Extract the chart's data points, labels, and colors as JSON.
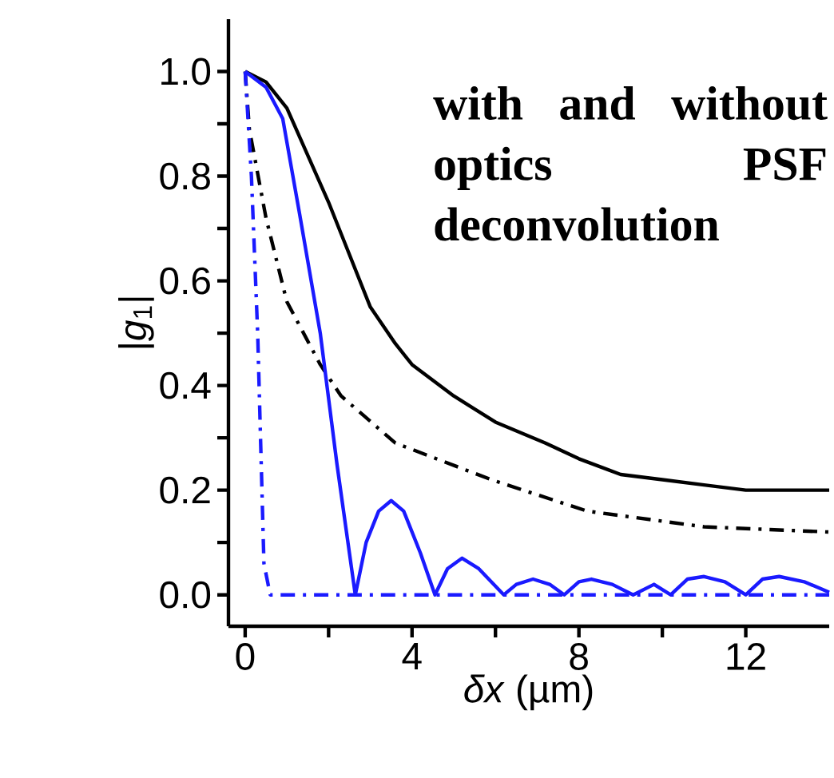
{
  "chart_data": {
    "type": "line",
    "xlabel": "*δx* (µm)",
    "ylabel": "|*g*$_{1}$|",
    "annotations": [
      "with and without optics PSF deconvolution"
    ],
    "xlim": [
      -0.4,
      14
    ],
    "ylim": [
      -0.06,
      1.1
    ],
    "xticks": [
      0,
      {
        "value": 2,
        "label": null
      },
      4,
      {
        "value": 6,
        "label": null
      },
      8,
      {
        "value": 10,
        "label": null
      },
      12
    ],
    "yticks": [
      {
        "value": 0,
        "label": "0.0"
      },
      {
        "value": 0.1,
        "label": null
      },
      {
        "value": 0.2,
        "label": "0.2"
      },
      {
        "value": 0.3,
        "label": null
      },
      {
        "value": 0.4,
        "label": "0.4"
      },
      {
        "value": 0.5,
        "label": null
      },
      {
        "value": 0.6,
        "label": "0.6"
      },
      {
        "value": 0.7,
        "label": null
      },
      {
        "value": 0.8,
        "label": "0.8"
      },
      {
        "value": 0.9,
        "label": null
      },
      {
        "value": 1.0,
        "label": "1.0"
      }
    ],
    "grid": false,
    "marker": "none",
    "series": [
      {
        "color": "#000000",
        "line_style": "solid",
        "x": [
          0,
          0.5,
          1,
          1.5,
          2,
          2.45,
          3,
          3.6,
          4,
          5,
          6,
          7.2,
          8,
          9,
          10,
          11,
          12,
          13,
          14
        ],
        "values": [
          1.0,
          0.98,
          0.93,
          0.84,
          0.75,
          0.66,
          0.55,
          0.48,
          0.44,
          0.38,
          0.33,
          0.29,
          0.26,
          0.23,
          0.22,
          0.21,
          0.2,
          0.2,
          0.2
        ]
      },
      {
        "color": "#000000",
        "line_style": "dashdot",
        "x": [
          0,
          0.1,
          0.5,
          1,
          1.8,
          2.3,
          3.6,
          5.9,
          8.2,
          11,
          14
        ],
        "values": [
          1.0,
          0.89,
          0.72,
          0.56,
          0.44,
          0.38,
          0.29,
          0.22,
          0.16,
          0.13,
          0.12
        ]
      },
      {
        "color": "#1a1aff",
        "line_style": "solid",
        "x": [
          0,
          0.5,
          0.9,
          1.3,
          1.8,
          2.2,
          2.64,
          2.9,
          3.2,
          3.5,
          3.8,
          4.2,
          4.55,
          4.85,
          5.2,
          5.6,
          6.2,
          6.5,
          6.9,
          7.3,
          7.65,
          8.0,
          8.3,
          8.8,
          9.3,
          9.8,
          10.2,
          10.6,
          11.0,
          11.5,
          12,
          12.4,
          12.8,
          13.4,
          14
        ],
        "values": [
          1.0,
          0.97,
          0.91,
          0.73,
          0.5,
          0.25,
          0.0,
          0.1,
          0.16,
          0.18,
          0.16,
          0.08,
          0.0,
          0.05,
          0.07,
          0.05,
          0.0,
          0.02,
          0.03,
          0.02,
          0.0,
          0.025,
          0.03,
          0.02,
          0.0,
          0.02,
          0.0,
          0.03,
          0.035,
          0.025,
          0.0,
          0.03,
          0.035,
          0.025,
          0.005
        ]
      },
      {
        "color": "#1a1aff",
        "line_style": "dashdot",
        "x": [
          0,
          0.15,
          0.3,
          0.45,
          0.6,
          14
        ],
        "values": [
          1.0,
          0.8,
          0.5,
          0.06,
          0.0,
          0.0
        ]
      }
    ]
  }
}
